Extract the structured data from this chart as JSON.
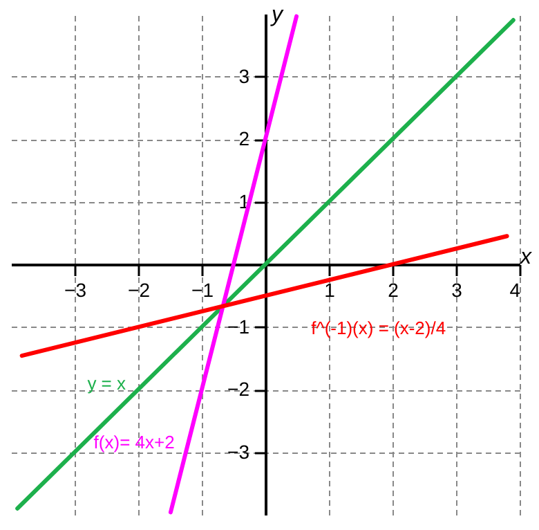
{
  "chart_data": {
    "type": "line",
    "xlabel": "x",
    "ylabel": "y",
    "xlim": [
      -4,
      4
    ],
    "ylim": [
      -4,
      4
    ],
    "xticks": [
      -3,
      -2,
      -1,
      1,
      2,
      3,
      4
    ],
    "yticks": [
      -3,
      -2,
      -1,
      1,
      2,
      3
    ],
    "grid": true,
    "line_style": "solid",
    "series": [
      {
        "name": "y = x",
        "color": "#1db04c",
        "x": [
          -3.9,
          3.9
        ],
        "values": [
          -3.9,
          3.9
        ]
      },
      {
        "name": "f(x)= 4x+2",
        "color": "#ff00ff",
        "x": [
          -1.49,
          0.49
        ],
        "values": [
          -3.96,
          3.96
        ]
      },
      {
        "name": "f^(-1)(x) = (x-2)/4",
        "color": "#ff0000",
        "x": [
          -3.83,
          3.8
        ],
        "values": [
          -1.46,
          0.45
        ]
      }
    ]
  }
}
